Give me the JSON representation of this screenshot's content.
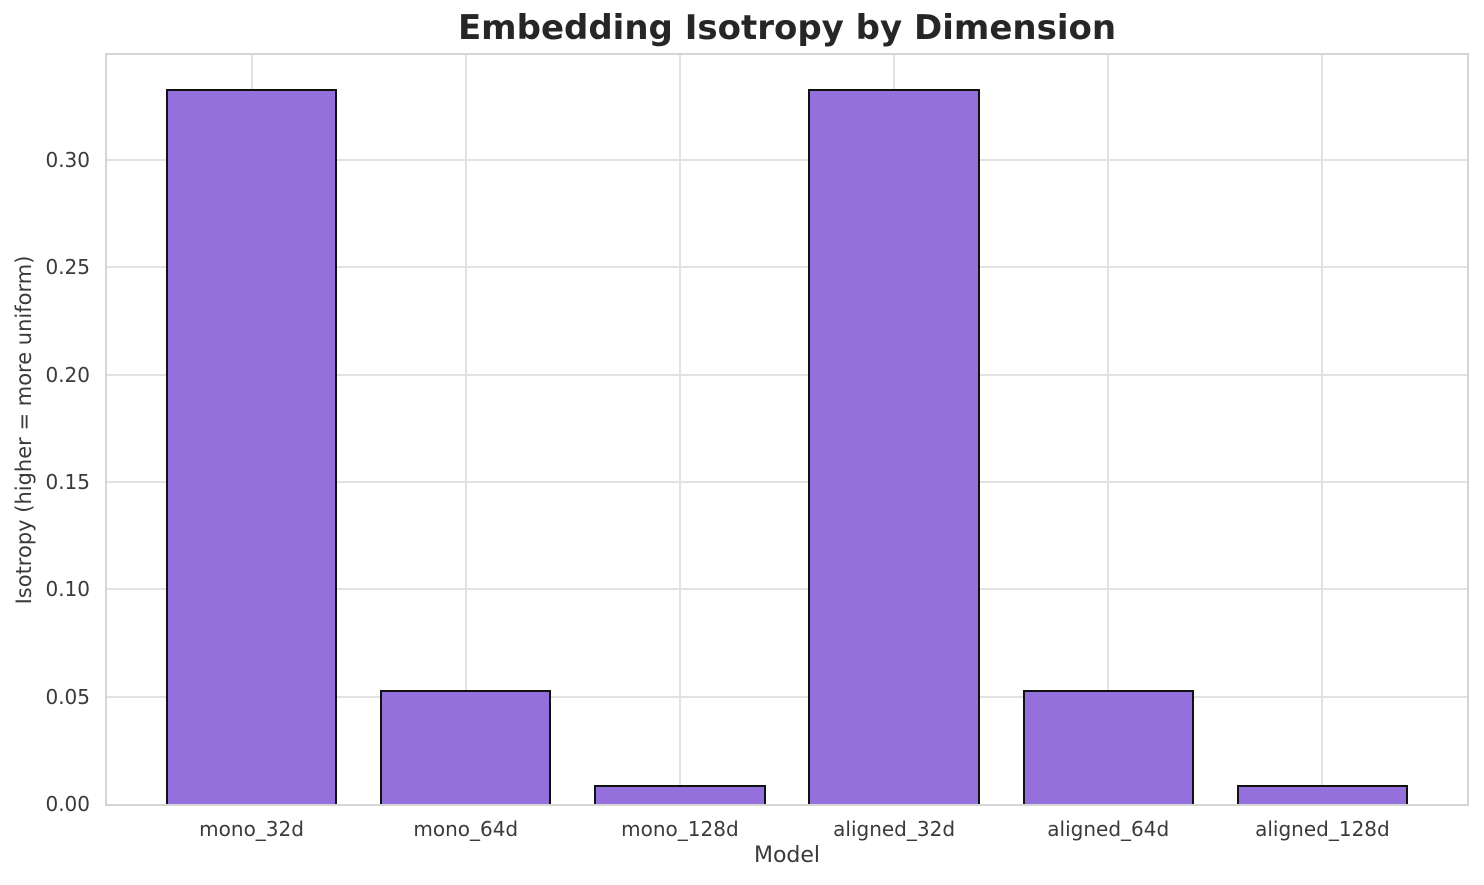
{
  "chart_data": {
    "type": "bar",
    "title": "Embedding Isotropy by Dimension",
    "xlabel": "Model",
    "ylabel": "Isotropy (higher = more uniform)",
    "categories": [
      "mono_32d",
      "mono_64d",
      "mono_128d",
      "aligned_32d",
      "aligned_64d",
      "aligned_128d"
    ],
    "values": [
      0.333,
      0.053,
      0.009,
      0.333,
      0.053,
      0.009
    ],
    "ylim": [
      0,
      0.349
    ],
    "ytick_labels": [
      "0.00",
      "0.05",
      "0.10",
      "0.15",
      "0.20",
      "0.25",
      "0.30"
    ],
    "grid": true,
    "legend": "none",
    "bar_width_fraction": 0.8,
    "colors": {
      "bar_fill": "#9370db",
      "bar_edge": "#111111",
      "grid": "#e2e2e2",
      "spine": "#d5d5d5",
      "tick_text": "#3a3a3a",
      "title_text": "#262626",
      "background": "#ffffff"
    }
  }
}
